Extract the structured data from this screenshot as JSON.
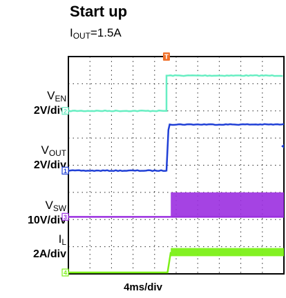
{
  "chart_data": {
    "type": "line",
    "title": "Start up",
    "subtitle_prefix": "I",
    "subtitle_sub": "OUT",
    "subtitle_suffix": "=1.5A",
    "xlabel": "4ms/div",
    "x_divisions": 10,
    "y_divisions": 8,
    "grid": true,
    "trigger_marker": "T",
    "series": [
      {
        "name_main": "V",
        "name_sub": "EN",
        "scale": "2V/div",
        "channel": "2",
        "color": "#67eec2",
        "low_level": 6.0,
        "high_level": 7.3,
        "step_time": 4.55
      },
      {
        "name_main": "V",
        "name_sub": "OUT",
        "scale": "2V/div",
        "channel": "1",
        "color": "#1f3fd6",
        "low_level": 3.8,
        "high_level": 5.5,
        "step_time": 4.55,
        "rise_time": 0.15
      },
      {
        "name_main": "V",
        "name_sub": "SW",
        "scale": "10V/div",
        "channel": "3",
        "color": "#9b2fe0",
        "low_level": 2.1,
        "high_level": 3.0,
        "step_time": 4.75,
        "switching": true
      },
      {
        "name_main": "I",
        "name_sub": "L",
        "scale": "2A/div",
        "channel": "4",
        "color": "#7cf017",
        "low_level": 0.05,
        "high_level": 0.8,
        "ripple_band": 0.3,
        "step_time": 4.6,
        "rise_time": 0.15
      }
    ]
  }
}
